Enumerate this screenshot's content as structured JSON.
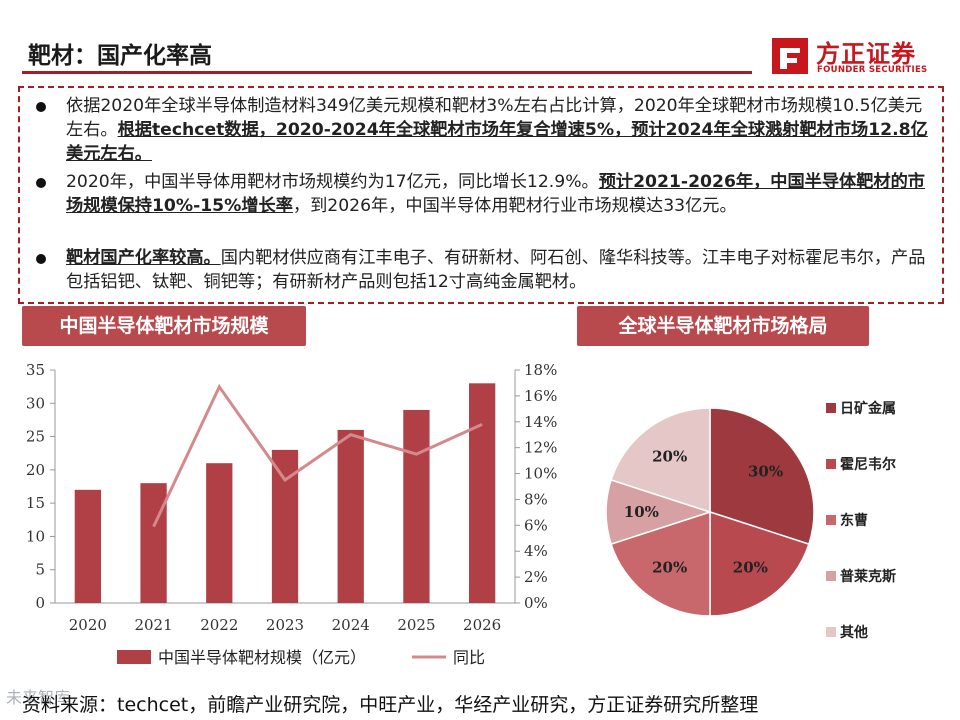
{
  "header": {
    "title": "靶材：国产化率高",
    "logo_cn": "方正证券",
    "logo_en": "FOUNDER SECURITIES"
  },
  "bullets": [
    {
      "normal": "依据2020年全球半导体制造材料349亿美元规模和靶材3%左右占比计算，2020年全球靶材市场规模10.5亿美元左右。",
      "bold": "根据techcet数据，2020-2024年全球靶材市场年复合增速5%，预计2024年全球溅射靶材市场12.8亿美元左右。",
      "tail": ""
    },
    {
      "normal": "2020年，中国半导体用靶材市场规模约为17亿元，同比增长12.9%。",
      "bold": "预计2021-2026年，中国半导体靶材的市场规模保持10%-15%增长率",
      "tail": "，到2026年，中国半导体用靶材行业市场规模达33亿元。"
    },
    {
      "normal": "",
      "bold": "靶材国产化率较高。",
      "tail": "国内靶材供应商有江丰电子、有研新材、阿石创、隆华科技等。江丰电子对标霍尼韦尔，产品包括铝钯、钛靶、铜钯等；有研新材产品则包括12寸高纯金属靶材。"
    }
  ],
  "panels": {
    "left_title": "中国半导体靶材市场规模",
    "right_title": "全球半导体靶材市场格局"
  },
  "colors": {
    "brand": "#c8161d",
    "accent": "#a31f24",
    "bar": "#b04046",
    "line": "#d4898c",
    "pie": [
      "#9e3a3f",
      "#b84a4f",
      "#c8686c",
      "#d7a1a4",
      "#e6c7c8"
    ]
  },
  "chart_data": [
    {
      "type": "bar",
      "categories": [
        "2020",
        "2021",
        "2022",
        "2023",
        "2024",
        "2025",
        "2026"
      ],
      "series": [
        {
          "name": "中国半导体靶材规模（亿元）",
          "type": "bar",
          "axis": "left",
          "values": [
            17,
            18,
            21,
            23,
            26,
            29,
            33
          ]
        },
        {
          "name": "同比",
          "type": "line",
          "axis": "right",
          "values": [
            null,
            5.9,
            16.7,
            9.5,
            13.0,
            11.5,
            13.8
          ]
        }
      ],
      "y_left": {
        "range": [
          0,
          35
        ],
        "ticks": [
          "0",
          "5",
          "10",
          "15",
          "20",
          "25",
          "30",
          "35"
        ]
      },
      "y_right": {
        "range": [
          0,
          18
        ],
        "ticks": [
          "0%",
          "2%",
          "4%",
          "6%",
          "8%",
          "10%",
          "12%",
          "14%",
          "16%",
          "18%"
        ]
      },
      "legend": [
        "中国半导体靶材规模（亿元）",
        "同比"
      ]
    },
    {
      "type": "pie",
      "slices": [
        {
          "label": "日矿金属",
          "value": 30,
          "text": "30%"
        },
        {
          "label": "霍尼韦尔",
          "value": 20,
          "text": "20%"
        },
        {
          "label": "东曹",
          "value": 20,
          "text": "20%"
        },
        {
          "label": "普莱克斯",
          "value": 10,
          "text": "10%"
        },
        {
          "label": "其他",
          "value": 20,
          "text": "20%"
        }
      ],
      "legend_position": "right"
    }
  ],
  "footer": {
    "source": "资料来源：techcet，前瞻产业研究院，中旺产业，华经产业研究，方正证券研究所整理",
    "watermark": "未来智库"
  }
}
